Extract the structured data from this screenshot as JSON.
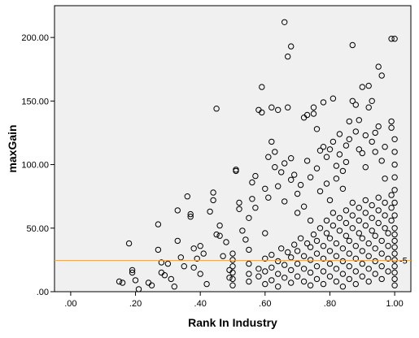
{
  "chart_data": {
    "type": "scatter",
    "xlabel": "Rank In Industry",
    "ylabel": "maxGain",
    "xlim": [
      -0.05,
      1.05
    ],
    "ylim": [
      0,
      225
    ],
    "x_ticks": [
      ".00",
      ".20",
      ".40",
      ".60",
      ".80",
      "1.00"
    ],
    "y_ticks": [
      ".00",
      "50.00",
      "100.00",
      "150.00",
      "200.00"
    ],
    "plot_background": "#f0f0f0",
    "marker": "hollow-circle",
    "reference_line": {
      "value": 24.5,
      "color": "#f0a040",
      "label": "-5"
    },
    "series": [
      {
        "points": [
          [
            0.15,
            8
          ],
          [
            0.16,
            7
          ],
          [
            0.18,
            38
          ],
          [
            0.19,
            17
          ],
          [
            0.19,
            15
          ],
          [
            0.2,
            9
          ],
          [
            0.21,
            2
          ],
          [
            0.24,
            7
          ],
          [
            0.25,
            5
          ],
          [
            0.27,
            53
          ],
          [
            0.27,
            33
          ],
          [
            0.28,
            15
          ],
          [
            0.28,
            23
          ],
          [
            0.29,
            13
          ],
          [
            0.3,
            22
          ],
          [
            0.31,
            10
          ],
          [
            0.32,
            4
          ],
          [
            0.33,
            64
          ],
          [
            0.33,
            40
          ],
          [
            0.34,
            27
          ],
          [
            0.35,
            20
          ],
          [
            0.36,
            75
          ],
          [
            0.37,
            59
          ],
          [
            0.37,
            61
          ],
          [
            0.38,
            34
          ],
          [
            0.38,
            19
          ],
          [
            0.39,
            26
          ],
          [
            0.4,
            36
          ],
          [
            0.4,
            14
          ],
          [
            0.41,
            30
          ],
          [
            0.42,
            6
          ],
          [
            0.43,
            63
          ],
          [
            0.44,
            78
          ],
          [
            0.44,
            72
          ],
          [
            0.45,
            45
          ],
          [
            0.45,
            144
          ],
          [
            0.46,
            44
          ],
          [
            0.46,
            52
          ],
          [
            0.47,
            28
          ],
          [
            0.48,
            39
          ],
          [
            0.49,
            17
          ],
          [
            0.49,
            11
          ],
          [
            0.51,
            96
          ],
          [
            0.51,
            95
          ],
          [
            0.52,
            70
          ],
          [
            0.52,
            65
          ],
          [
            0.53,
            48
          ],
          [
            0.54,
            41
          ],
          [
            0.55,
            58
          ],
          [
            0.55,
            33
          ],
          [
            0.56,
            73
          ],
          [
            0.56,
            86
          ],
          [
            0.57,
            91
          ],
          [
            0.57,
            66
          ],
          [
            0.58,
            143
          ],
          [
            0.59,
            141
          ],
          [
            0.59,
            161
          ],
          [
            0.6,
            46
          ],
          [
            0.6,
            81
          ],
          [
            0.61,
            106
          ],
          [
            0.61,
            74
          ],
          [
            0.62,
            145
          ],
          [
            0.62,
            118
          ],
          [
            0.63,
            98
          ],
          [
            0.63,
            110
          ],
          [
            0.64,
            143
          ],
          [
            0.64,
            83
          ],
          [
            0.65,
            94
          ],
          [
            0.66,
            101
          ],
          [
            0.66,
            212
          ],
          [
            0.66,
            71
          ],
          [
            0.67,
            185
          ],
          [
            0.67,
            145
          ],
          [
            0.68,
            193
          ],
          [
            0.68,
            105
          ],
          [
            0.68,
            88
          ],
          [
            0.69,
            92
          ],
          [
            0.7,
            62
          ],
          [
            0.7,
            77
          ],
          [
            0.71,
            84
          ],
          [
            0.72,
            137
          ],
          [
            0.72,
            67
          ],
          [
            0.73,
            139
          ],
          [
            0.73,
            103
          ],
          [
            0.74,
            90
          ],
          [
            0.74,
            56
          ],
          [
            0.75,
            145
          ],
          [
            0.75,
            140
          ],
          [
            0.76,
            128
          ],
          [
            0.76,
            97
          ],
          [
            0.77,
            111
          ],
          [
            0.77,
            79
          ],
          [
            0.78,
            149
          ],
          [
            0.78,
            114
          ],
          [
            0.79,
            106
          ],
          [
            0.79,
            85
          ],
          [
            0.8,
            112
          ],
          [
            0.8,
            72
          ],
          [
            0.81,
            152
          ],
          [
            0.81,
            118
          ],
          [
            0.82,
            99
          ],
          [
            0.82,
            89
          ],
          [
            0.83,
            124
          ],
          [
            0.83,
            108
          ],
          [
            0.84,
            95
          ],
          [
            0.84,
            81
          ],
          [
            0.85,
            115
          ],
          [
            0.85,
            102
          ],
          [
            0.86,
            134
          ],
          [
            0.86,
            120
          ],
          [
            0.87,
            150
          ],
          [
            0.87,
            194
          ],
          [
            0.88,
            147
          ],
          [
            0.88,
            126
          ],
          [
            0.89,
            135
          ],
          [
            0.89,
            112
          ],
          [
            0.9,
            161
          ],
          [
            0.9,
            109
          ],
          [
            0.91,
            123
          ],
          [
            0.91,
            98
          ],
          [
            0.92,
            145
          ],
          [
            0.92,
            162
          ],
          [
            0.93,
            150
          ],
          [
            0.93,
            118
          ],
          [
            0.94,
            110
          ],
          [
            0.94,
            125
          ],
          [
            0.95,
            130
          ],
          [
            0.95,
            177
          ],
          [
            0.96,
            170
          ],
          [
            0.96,
            103
          ],
          [
            0.97,
            114
          ],
          [
            0.97,
            89
          ],
          [
            0.99,
            134
          ],
          [
            0.99,
            129
          ],
          [
            0.99,
            199
          ],
          [
            1.0,
            199
          ],
          [
            1.0,
            120
          ],
          [
            1.0,
            110
          ],
          [
            1.0,
            100
          ],
          [
            1.0,
            90
          ],
          [
            1.0,
            80
          ],
          [
            1.0,
            70
          ],
          [
            1.0,
            60
          ],
          [
            1.0,
            50
          ],
          [
            1.0,
            45
          ],
          [
            1.0,
            40
          ],
          [
            1.0,
            35
          ],
          [
            1.0,
            30
          ],
          [
            1.0,
            25
          ],
          [
            1.0,
            20
          ],
          [
            1.0,
            15
          ],
          [
            1.0,
            10
          ],
          [
            1.0,
            5
          ],
          [
            0.5,
            5
          ],
          [
            0.5,
            10
          ],
          [
            0.5,
            15
          ],
          [
            0.5,
            20
          ],
          [
            0.5,
            25
          ],
          [
            0.5,
            30
          ],
          [
            0.55,
            8
          ],
          [
            0.55,
            14
          ],
          [
            0.55,
            22
          ],
          [
            0.58,
            12
          ],
          [
            0.58,
            18
          ],
          [
            0.6,
            6
          ],
          [
            0.6,
            16
          ],
          [
            0.6,
            26
          ],
          [
            0.62,
            9
          ],
          [
            0.62,
            19
          ],
          [
            0.62,
            29
          ],
          [
            0.64,
            4
          ],
          [
            0.64,
            14
          ],
          [
            0.64,
            24
          ],
          [
            0.65,
            34
          ],
          [
            0.66,
            11
          ],
          [
            0.66,
            21
          ],
          [
            0.67,
            31
          ],
          [
            0.68,
            7
          ],
          [
            0.68,
            17
          ],
          [
            0.68,
            27
          ],
          [
            0.69,
            37
          ],
          [
            0.7,
            12
          ],
          [
            0.7,
            22
          ],
          [
            0.7,
            32
          ],
          [
            0.71,
            42
          ],
          [
            0.72,
            8
          ],
          [
            0.72,
            18
          ],
          [
            0.72,
            28
          ],
          [
            0.73,
            38
          ],
          [
            0.74,
            5
          ],
          [
            0.74,
            15
          ],
          [
            0.74,
            25
          ],
          [
            0.74,
            35
          ],
          [
            0.75,
            45
          ],
          [
            0.76,
            10
          ],
          [
            0.76,
            20
          ],
          [
            0.76,
            30
          ],
          [
            0.76,
            40
          ],
          [
            0.77,
            50
          ],
          [
            0.78,
            6
          ],
          [
            0.78,
            16
          ],
          [
            0.78,
            26
          ],
          [
            0.78,
            36
          ],
          [
            0.79,
            46
          ],
          [
            0.79,
            56
          ],
          [
            0.8,
            12
          ],
          [
            0.8,
            22
          ],
          [
            0.8,
            32
          ],
          [
            0.8,
            42
          ],
          [
            0.81,
            52
          ],
          [
            0.81,
            62
          ],
          [
            0.82,
            8
          ],
          [
            0.82,
            18
          ],
          [
            0.82,
            28
          ],
          [
            0.82,
            38
          ],
          [
            0.83,
            48
          ],
          [
            0.83,
            58
          ],
          [
            0.84,
            4
          ],
          [
            0.84,
            14
          ],
          [
            0.84,
            24
          ],
          [
            0.84,
            34
          ],
          [
            0.85,
            44
          ],
          [
            0.85,
            54
          ],
          [
            0.85,
            64
          ],
          [
            0.86,
            10
          ],
          [
            0.86,
            20
          ],
          [
            0.86,
            30
          ],
          [
            0.86,
            40
          ],
          [
            0.87,
            50
          ],
          [
            0.87,
            60
          ],
          [
            0.87,
            70
          ],
          [
            0.88,
            6
          ],
          [
            0.88,
            16
          ],
          [
            0.88,
            26
          ],
          [
            0.88,
            36
          ],
          [
            0.89,
            46
          ],
          [
            0.89,
            56
          ],
          [
            0.89,
            66
          ],
          [
            0.9,
            12
          ],
          [
            0.9,
            22
          ],
          [
            0.9,
            32
          ],
          [
            0.9,
            42
          ],
          [
            0.91,
            52
          ],
          [
            0.91,
            62
          ],
          [
            0.91,
            72
          ],
          [
            0.92,
            8
          ],
          [
            0.92,
            18
          ],
          [
            0.92,
            28
          ],
          [
            0.92,
            38
          ],
          [
            0.93,
            48
          ],
          [
            0.93,
            58
          ],
          [
            0.93,
            68
          ],
          [
            0.94,
            14
          ],
          [
            0.94,
            24
          ],
          [
            0.94,
            34
          ],
          [
            0.94,
            44
          ],
          [
            0.95,
            54
          ],
          [
            0.95,
            64
          ],
          [
            0.95,
            74
          ],
          [
            0.96,
            10
          ],
          [
            0.96,
            20
          ],
          [
            0.96,
            30
          ],
          [
            0.96,
            40
          ],
          [
            0.97,
            50
          ],
          [
            0.97,
            60
          ],
          [
            0.97,
            70
          ],
          [
            0.98,
            16
          ],
          [
            0.98,
            26
          ],
          [
            0.98,
            36
          ],
          [
            0.98,
            46
          ],
          [
            0.99,
            56
          ],
          [
            0.99,
            66
          ],
          [
            0.99,
            76
          ]
        ]
      }
    ]
  }
}
